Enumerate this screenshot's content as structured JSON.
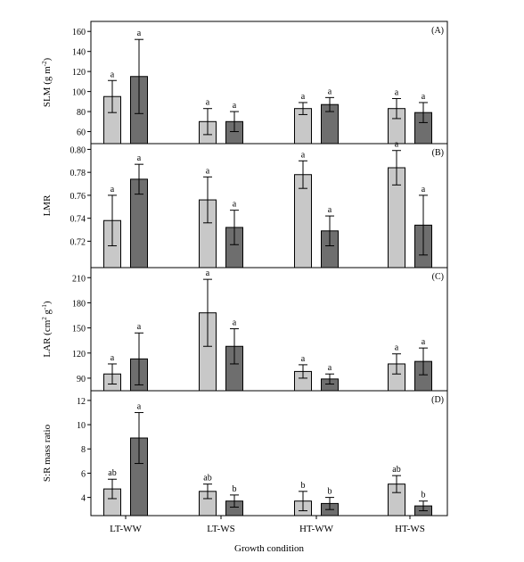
{
  "figure": {
    "xlabel": "Growth condition",
    "categories": [
      "LT-WW",
      "LT-WS",
      "HT-WW",
      "HT-WS"
    ],
    "colors": {
      "light_bar": "#c8c8c8",
      "dark_bar": "#6e6e6e",
      "axis": "#000000"
    }
  },
  "chart_data": [
    {
      "type": "bar",
      "panel": "(A)",
      "ylabel": "SLM (g m",
      "ylabel_sup": "-2",
      "ylabel_close": ")",
      "ylim": [
        48,
        170
      ],
      "yticks": [
        60,
        80,
        100,
        120,
        140,
        160
      ],
      "categories": [
        "LT-WW",
        "LT-WS",
        "HT-WW",
        "HT-WS"
      ],
      "series": [
        {
          "values": [
            95,
            70,
            83,
            83
          ],
          "errors": [
            16,
            13,
            6,
            10
          ],
          "letters": [
            "a",
            "a",
            "a",
            "a"
          ]
        },
        {
          "values": [
            115,
            70,
            87,
            79
          ],
          "errors": [
            37,
            10,
            7,
            10
          ],
          "letters": [
            "a",
            "a",
            "a",
            "a"
          ]
        }
      ]
    },
    {
      "type": "bar",
      "panel": "(B)",
      "ylabel": "LMR",
      "ylim": [
        0.697,
        0.805
      ],
      "yticks": [
        "0.72",
        "0.74",
        "0.76",
        "0.78",
        "0.80"
      ],
      "categories": [
        "LT-WW",
        "LT-WS",
        "HT-WW",
        "HT-WS"
      ],
      "series": [
        {
          "values": [
            0.738,
            0.756,
            0.778,
            0.784
          ],
          "errors": [
            0.022,
            0.02,
            0.012,
            0.015
          ],
          "letters": [
            "a",
            "a",
            "a",
            "a"
          ]
        },
        {
          "values": [
            0.774,
            0.732,
            0.729,
            0.734
          ],
          "errors": [
            0.013,
            0.015,
            0.013,
            0.026
          ],
          "letters": [
            "a",
            "a",
            "a",
            "a"
          ]
        }
      ]
    },
    {
      "type": "bar",
      "panel": "(C)",
      "ylabel": "LAR (cm",
      "ylabel_sup": "2",
      "ylabel_mid": " g",
      "ylabel_sup2": "-1",
      "ylabel_close": ")",
      "ylim": [
        75,
        222
      ],
      "yticks": [
        90,
        120,
        150,
        180,
        210
      ],
      "categories": [
        "LT-WW",
        "LT-WS",
        "HT-WW",
        "HT-WS"
      ],
      "series": [
        {
          "values": [
            95,
            168,
            98,
            107
          ],
          "errors": [
            12,
            40,
            8,
            12
          ],
          "letters": [
            "a",
            "a",
            "a",
            "a"
          ]
        },
        {
          "values": [
            113,
            128,
            89,
            110
          ],
          "errors": [
            31,
            21,
            6,
            16
          ],
          "letters": [
            "a",
            "a",
            "a",
            "a"
          ]
        }
      ]
    },
    {
      "type": "bar",
      "panel": "(D)",
      "ylabel": "S:R mass ratio",
      "ylim": [
        2.5,
        12.8
      ],
      "yticks": [
        4,
        6,
        8,
        10,
        12
      ],
      "categories": [
        "LT-WW",
        "LT-WS",
        "HT-WW",
        "HT-WS"
      ],
      "series": [
        {
          "values": [
            4.7,
            4.5,
            3.7,
            5.1
          ],
          "errors": [
            0.8,
            0.6,
            0.8,
            0.7
          ],
          "letters": [
            "ab",
            "ab",
            "b",
            "ab"
          ]
        },
        {
          "values": [
            8.9,
            3.7,
            3.5,
            3.3
          ],
          "errors": [
            2.1,
            0.5,
            0.5,
            0.4
          ],
          "letters": [
            "a",
            "b",
            "b",
            "b"
          ]
        }
      ]
    }
  ]
}
